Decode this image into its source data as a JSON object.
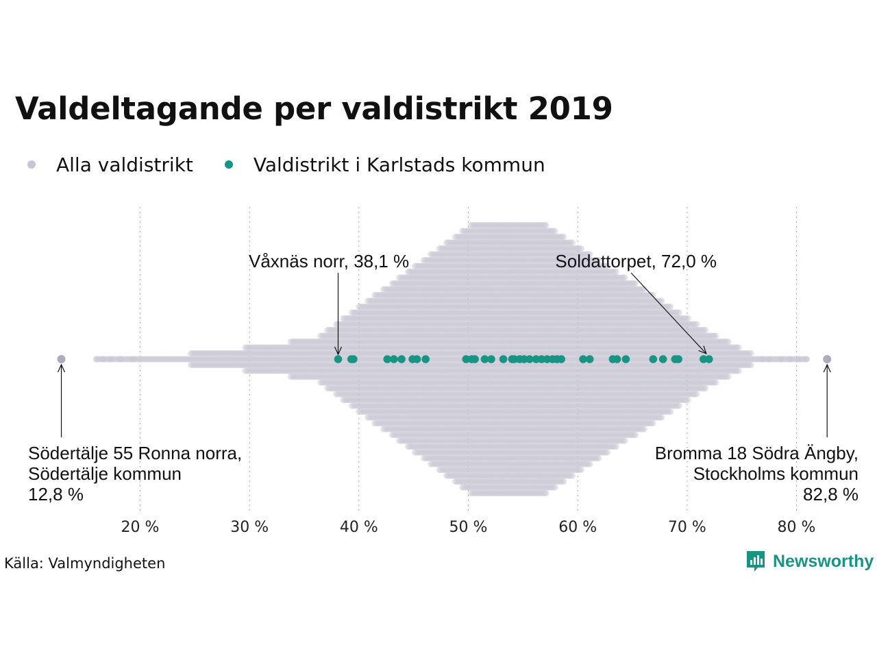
{
  "title": "Valdeltagande per valdistrikt 2019",
  "legend": [
    {
      "label": "Alla valdistrikt",
      "color": "#c7c5d3"
    },
    {
      "label": "Valdistrikt i Karlstads kommun",
      "color": "#179483"
    }
  ],
  "source": "Källa: Valmyndigheten",
  "brand": {
    "name": "Newsworthy",
    "color": "#179483",
    "icon": "newsworthy-logo-icon"
  },
  "chart_data": {
    "type": "scatter",
    "subtype": "beeswarm",
    "title": "Valdeltagande per valdistrikt 2019",
    "xlabel": "",
    "ylabel": "",
    "xlim": [
      12,
      84
    ],
    "x_ticks": [
      20,
      30,
      40,
      50,
      60,
      70,
      80
    ],
    "x_tick_labels": [
      "20 %",
      "30 %",
      "40 %",
      "50 %",
      "60 %",
      "70 %",
      "80 %"
    ],
    "grid": "vertical dotted",
    "legend_position": "top-left",
    "series": [
      {
        "name": "Alla valdistrikt",
        "color": "#c7c5d3",
        "distribution_note": "",
        "peak": 54,
        "min": 12.8,
        "max": 82.8
      },
      {
        "name": "Valdistrikt i Karlstads kommun",
        "color": "#179483",
        "values": [
          38.1,
          39.3,
          39.5,
          42.6,
          43.2,
          43.9,
          44.9,
          45.3,
          46.1,
          49.8,
          50.3,
          50.6,
          51.5,
          52.1,
          53.2,
          54.0,
          54.2,
          54.7,
          55.1,
          55.6,
          56.2,
          56.7,
          57.2,
          57.7,
          58.1,
          58.5,
          60.5,
          61.1,
          63.2,
          63.6,
          64.4,
          66.9,
          67.8,
          68.9,
          69.2,
          71.5,
          72.0
        ]
      }
    ],
    "annotations": [
      {
        "label": "Våxnäs norr, 38,1 %",
        "x": 38.1,
        "position": "above"
      },
      {
        "label": "Soldattorpet, 72,0 %",
        "x": 72.0,
        "position": "above"
      },
      {
        "lines": [
          "Södertälje 55 Ronna norra,",
          "Södertälje kommun",
          "12,8 %"
        ],
        "x": 12.8,
        "position": "below"
      },
      {
        "lines": [
          "Bromma 18 Södra Ängby,",
          "Stockholms kommun",
          "82,8 %"
        ],
        "x": 82.8,
        "position": "below"
      }
    ]
  }
}
